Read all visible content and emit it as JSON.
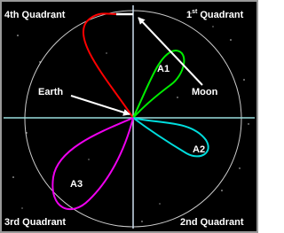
{
  "quadrants": {
    "first": {
      "number": "1",
      "suffix": "st",
      "rest": "Quadrant"
    },
    "second": "2nd Quadrant",
    "third": "3rd Quadrant",
    "fourth": "4th Quadrant"
  },
  "labels": {
    "earth": "Earth",
    "moon": "Moon",
    "a1": "A1",
    "a2": "A2",
    "a3": "A3"
  }
}
